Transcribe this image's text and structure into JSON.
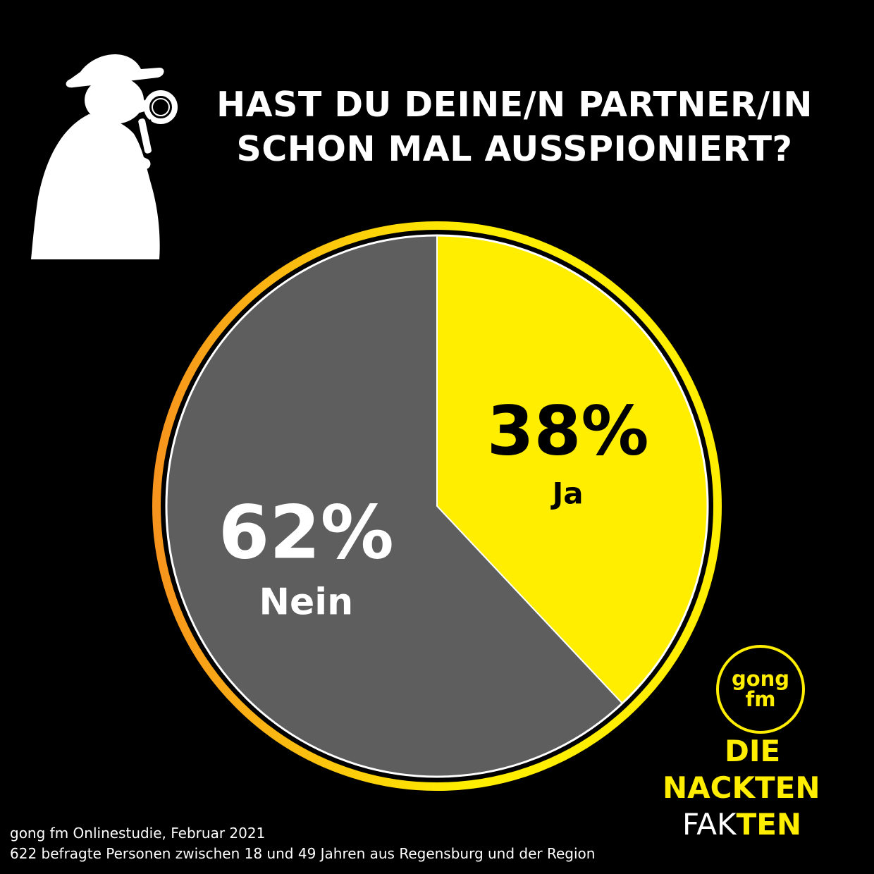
{
  "title": {
    "line1": "HAST DU DEINE/N PARTNER/IN",
    "line2": "SCHON MAL AUSSPIONIERT?"
  },
  "icons": {
    "illustration": "detective-with-magnifying-glass-icon"
  },
  "chart_data": {
    "type": "pie",
    "title": "HAST DU DEINE/N PARTNER/IN SCHON MAL AUSSPIONIERT?",
    "slices": [
      {
        "label": "Ja",
        "value": 38,
        "display": "38%",
        "color": "#ffee00",
        "label_color": "#000000"
      },
      {
        "label": "Nein",
        "value": 62,
        "display": "62%",
        "color": "#5e5e5e",
        "label_color": "#ffffff"
      }
    ],
    "ring_colors": [
      "#f7941d",
      "#ffee00"
    ],
    "legend": "none"
  },
  "logo": {
    "line1": "gong",
    "line2": "fm"
  },
  "brand": {
    "line1": "DIE",
    "line2": "NACKTEN",
    "line3_a": "FAK",
    "line3_b": "TEN"
  },
  "footer": {
    "line1": "gong fm Onlinestudie, Februar 2021",
    "line2": "622 befragte Personen zwischen 18 und 49 Jahren aus Regensburg und der Region"
  },
  "colors": {
    "background": "#000000",
    "accent": "#ffee00",
    "text": "#ffffff"
  }
}
